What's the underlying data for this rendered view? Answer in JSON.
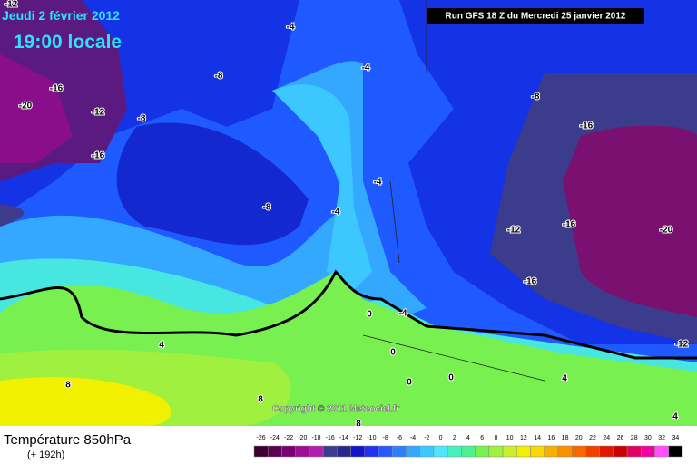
{
  "header": {
    "date": "Jeudi 2 février 2012",
    "time": "19:00 locale",
    "run": "Run GFS 18 Z du Mercredi 25 janvier 2012"
  },
  "map": {
    "contour_labels": [
      "-12",
      "-4",
      "-4",
      "-8",
      "-16",
      "-8",
      "-20",
      "-12",
      "-8",
      "-16",
      "-16",
      "-4",
      "-8",
      "-4",
      "-16",
      "-12",
      "-20",
      "-16",
      "0",
      "-4",
      "0",
      "-12",
      "4",
      "0",
      "0",
      "4",
      "8",
      "8",
      "4",
      "8"
    ]
  },
  "copyright": "Copyright © 2011 Meteociel.fr",
  "legend": {
    "title": "Température 850hPa",
    "lead": "(+ 192h)",
    "ticks": [
      -26,
      -24,
      -22,
      -20,
      -18,
      -16,
      -14,
      -12,
      -10,
      -8,
      -6,
      -4,
      -2,
      0,
      2,
      4,
      6,
      8,
      10,
      12,
      14,
      16,
      18,
      20,
      22,
      24,
      26,
      28,
      30,
      32,
      34
    ],
    "colors": [
      "#3a0030",
      "#5a0050",
      "#7a0070",
      "#9a1090",
      "#b020b0",
      "#3c3c8c",
      "#28288c",
      "#1414c8",
      "#1e32f0",
      "#2858ff",
      "#2c80ff",
      "#34a8ff",
      "#3cc8ff",
      "#50e6ff",
      "#48f0c0",
      "#50f090",
      "#78f050",
      "#a0f040",
      "#c8f030",
      "#f0f000",
      "#f8d800",
      "#f8b000",
      "#f89000",
      "#f86800",
      "#f04000",
      "#e01800",
      "#c80000",
      "#e00060",
      "#f000a0",
      "#ff50ff",
      "#000000"
    ]
  }
}
